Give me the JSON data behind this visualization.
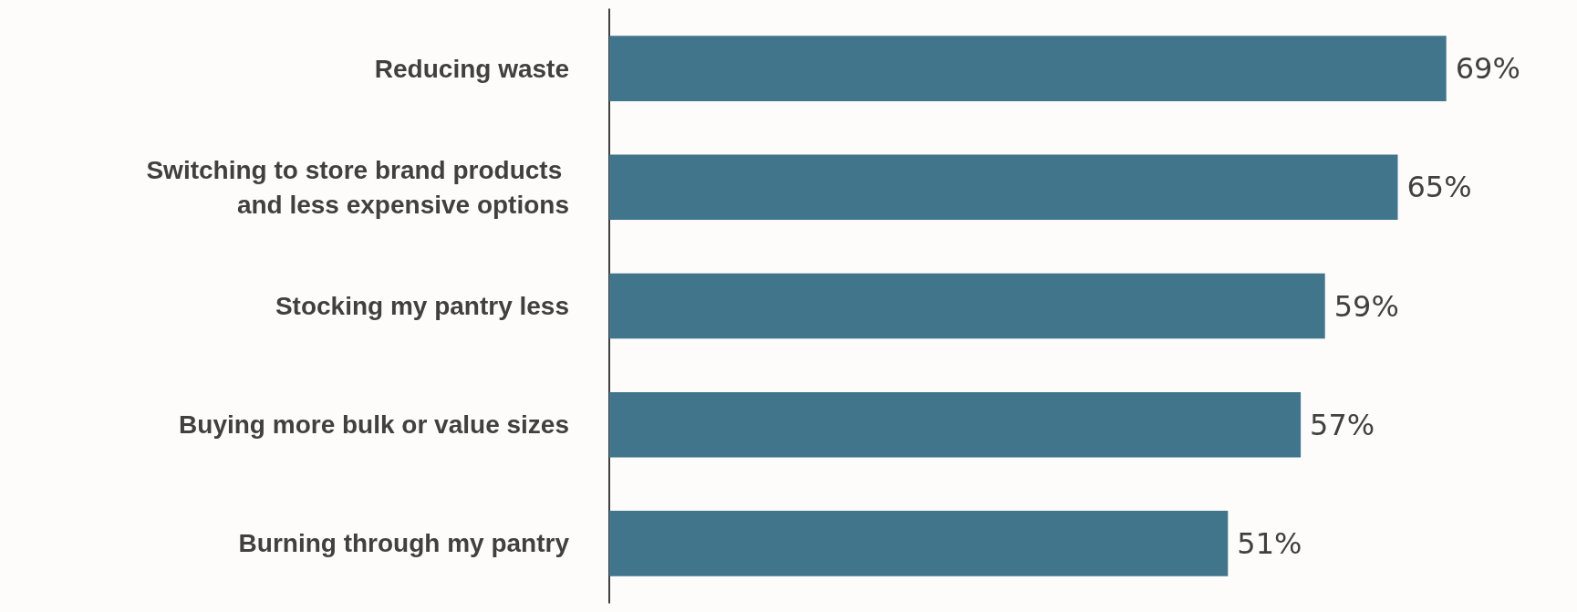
{
  "chart_data": {
    "type": "bar",
    "orientation": "horizontal",
    "categories": [
      "Reducing waste",
      "Switching to store brand products and less expensive options",
      "Stocking my pantry less",
      "Buying more bulk or value sizes",
      "Burning through my pantry"
    ],
    "values": [
      69,
      65,
      59,
      57,
      51
    ],
    "value_labels": [
      "69%",
      "65%",
      "59%",
      "57%",
      "51%"
    ],
    "color": "#41758c",
    "tick_labels": "y"
  }
}
